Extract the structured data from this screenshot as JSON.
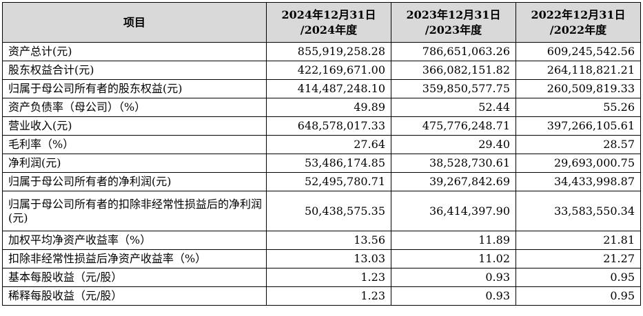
{
  "table": {
    "headers": [
      {
        "line1": "项目",
        "line2": ""
      },
      {
        "line1": "2024年12月31日",
        "line2": "/2024年度"
      },
      {
        "line1": "2023年12月31日",
        "line2": "/2023年度"
      },
      {
        "line1": "2022年12月31日",
        "line2": "/2022年度"
      }
    ],
    "rows": [
      {
        "label": "资产总计(元)",
        "v2024": "855,919,258.28",
        "v2023": "786,651,063.26",
        "v2022": "609,245,542.56"
      },
      {
        "label": "股东权益合计(元)",
        "v2024": "422,169,671.00",
        "v2023": "366,082,151.82",
        "v2022": "264,118,821.21"
      },
      {
        "label": "归属于母公司所有者的股东权益(元)",
        "v2024": "414,487,248.10",
        "v2023": "359,850,577.75",
        "v2022": "260,509,819.33"
      },
      {
        "label": "资产负债率（母公司）（%）",
        "v2024": "49.89",
        "v2023": "52.44",
        "v2022": "55.26"
      },
      {
        "label": "营业收入(元)",
        "v2024": "648,578,017.33",
        "v2023": "475,776,248.71",
        "v2022": "397,266,105.61"
      },
      {
        "label": "毛利率（%）",
        "v2024": "27.64",
        "v2023": "29.40",
        "v2022": "28.57"
      },
      {
        "label": "净利润(元)",
        "v2024": "53,486,174.85",
        "v2023": "38,528,730.61",
        "v2022": "29,693,000.75"
      },
      {
        "label": "归属于母公司所有者的净利润(元)",
        "v2024": "52,495,780.71",
        "v2023": "39,267,842.69",
        "v2022": "34,433,998.87"
      },
      {
        "label": "归属于母公司所有者的扣除非经常性损益后的净利润(元)",
        "v2024": "50,438,575.35",
        "v2023": "36,414,397.90",
        "v2022": "33,583,550.34"
      },
      {
        "label": "加权平均净资产收益率（%）",
        "v2024": "13.56",
        "v2023": "11.89",
        "v2022": "21.81"
      },
      {
        "label": "扣除非经常性损益后净资产收益率（%）",
        "v2024": "13.03",
        "v2023": "11.02",
        "v2022": "21.27"
      },
      {
        "label": "基本每股收益（元/股）",
        "v2024": "1.23",
        "v2023": "0.93",
        "v2022": "0.95"
      },
      {
        "label": "稀释每股收益（元/股）",
        "v2024": "1.23",
        "v2023": "0.93",
        "v2022": "0.95"
      }
    ]
  }
}
